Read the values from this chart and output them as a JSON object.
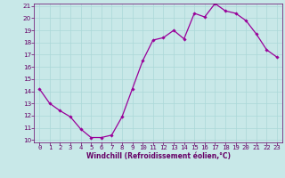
{
  "x": [
    0,
    1,
    2,
    3,
    4,
    5,
    6,
    7,
    8,
    9,
    10,
    11,
    12,
    13,
    14,
    15,
    16,
    17,
    18,
    19,
    20,
    21,
    22,
    23
  ],
  "y": [
    14.2,
    13.0,
    12.4,
    11.9,
    10.9,
    10.2,
    10.2,
    10.4,
    11.9,
    14.2,
    16.5,
    18.2,
    18.4,
    19.0,
    18.3,
    20.4,
    20.1,
    21.2,
    20.6,
    20.4,
    19.8,
    18.7,
    17.4,
    16.8
  ],
  "line_color": "#990099",
  "marker_color": "#990099",
  "bg_color": "#c8e8e8",
  "grid_color": "#aad8d8",
  "xlabel": "Windchill (Refroidissement éolien,°C)",
  "xlabel_color": "#660066",
  "tick_color": "#660066",
  "ylim": [
    10,
    21
  ],
  "xlim": [
    -0.5,
    23.5
  ],
  "yticks": [
    10,
    11,
    12,
    13,
    14,
    15,
    16,
    17,
    18,
    19,
    20,
    21
  ],
  "xticks": [
    0,
    1,
    2,
    3,
    4,
    5,
    6,
    7,
    8,
    9,
    10,
    11,
    12,
    13,
    14,
    15,
    16,
    17,
    18,
    19,
    20,
    21,
    22,
    23
  ],
  "tick_fontsize": 5.2,
  "label_fontsize": 5.5
}
